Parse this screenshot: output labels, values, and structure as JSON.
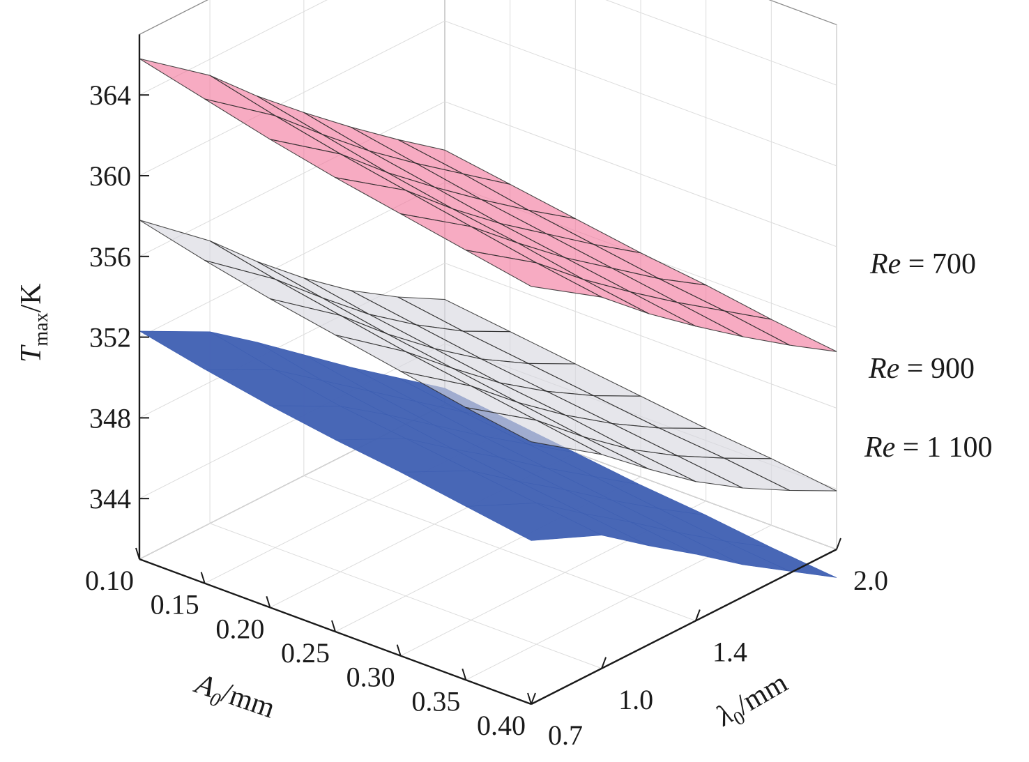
{
  "chart_data": {
    "type": "surface3d",
    "title": "",
    "axes": {
      "x": {
        "label_symbol": "A",
        "label_sub": "0",
        "label_unit": "/mm",
        "ticks": [
          "0.10",
          "0.15",
          "0.20",
          "0.25",
          "0.30",
          "0.35",
          "0.40"
        ],
        "range": [
          0.1,
          0.4
        ]
      },
      "y": {
        "label_symbol": "λ",
        "label_sub": "0",
        "label_unit": "/mm",
        "ticks": [
          "0.7",
          "1.0",
          "1.4",
          "2.0"
        ],
        "range": [
          0.7,
          2.0
        ]
      },
      "z": {
        "label_symbol": "T",
        "label_sub": "max",
        "label_unit": "/K",
        "ticks": [
          "344",
          "348",
          "352",
          "356",
          "360",
          "364"
        ],
        "range": [
          341,
          367
        ]
      }
    },
    "x": [
      0.1,
      0.15,
      0.2,
      0.25,
      0.3,
      0.35,
      0.4
    ],
    "y": [
      0.7,
      1.0,
      1.2,
      1.4,
      1.6,
      1.8,
      2.0
    ],
    "series": [
      {
        "name": "Re = 1 100",
        "label_symbol": "Re",
        "label_value": "= 1 100",
        "color": "#3e5fb2",
        "opacity": 0.95,
        "wireframe": false,
        "z": [
          [
            352.3,
            351.6,
            351.0,
            350.5,
            350.1,
            349.6,
            349.1
          ],
          [
            350.5,
            349.8,
            349.2,
            348.8,
            348.4,
            348.0,
            347.6
          ],
          [
            348.8,
            348.1,
            347.6,
            347.1,
            346.7,
            346.3,
            345.9
          ],
          [
            347.0,
            346.4,
            345.9,
            345.5,
            345.1,
            344.7,
            344.3
          ],
          [
            345.2,
            344.7,
            344.2,
            343.8,
            343.4,
            343.0,
            342.6
          ],
          [
            343.5,
            343.0,
            342.6,
            342.2,
            341.8,
            341.4,
            341.1
          ],
          [
            341.8,
            341.4,
            341.0,
            340.6,
            340.3,
            339.9,
            339.6
          ]
        ]
      },
      {
        "name": "Re = 900",
        "label_symbol": "Re",
        "label_value": "= 900",
        "color": "#d6d6de",
        "opacity": 0.62,
        "wireframe": true,
        "z": [
          [
            357.8,
            357.0,
            356.3,
            355.7,
            355.1,
            354.5,
            354.0
          ],
          [
            355.0,
            354.3,
            353.7,
            353.1,
            352.6,
            352.1,
            351.6
          ],
          [
            352.8,
            352.2,
            351.6,
            351.1,
            350.6,
            350.1,
            349.7
          ],
          [
            350.8,
            350.2,
            349.7,
            349.2,
            348.8,
            348.3,
            347.9
          ],
          [
            349.0,
            348.5,
            348.0,
            347.6,
            347.2,
            346.8,
            346.4
          ],
          [
            347.5,
            347.0,
            346.6,
            346.2,
            345.8,
            345.5,
            345.1
          ],
          [
            346.2,
            345.8,
            345.4,
            345.0,
            344.6,
            344.3,
            343.9
          ]
        ]
      },
      {
        "name": "Re = 700",
        "label_symbol": "Re",
        "label_value": "= 700",
        "color": "#f2789c",
        "opacity": 0.62,
        "wireframe": true,
        "z": [
          [
            365.8,
            365.0,
            364.2,
            363.5,
            362.9,
            362.3,
            361.7
          ],
          [
            363.2,
            362.4,
            361.7,
            361.1,
            360.5,
            359.9,
            359.4
          ],
          [
            361.0,
            360.3,
            359.6,
            359.0,
            358.5,
            357.9,
            357.4
          ],
          [
            359.0,
            358.3,
            357.7,
            357.1,
            356.6,
            356.1,
            355.6
          ],
          [
            357.1,
            356.5,
            355.9,
            355.4,
            354.9,
            354.4,
            353.9
          ],
          [
            355.3,
            354.8,
            354.2,
            353.7,
            353.2,
            352.8,
            352.3
          ],
          [
            353.6,
            353.1,
            352.6,
            352.1,
            351.7,
            351.2,
            350.8
          ]
        ]
      }
    ],
    "grid": true,
    "legend_placement": "right"
  }
}
